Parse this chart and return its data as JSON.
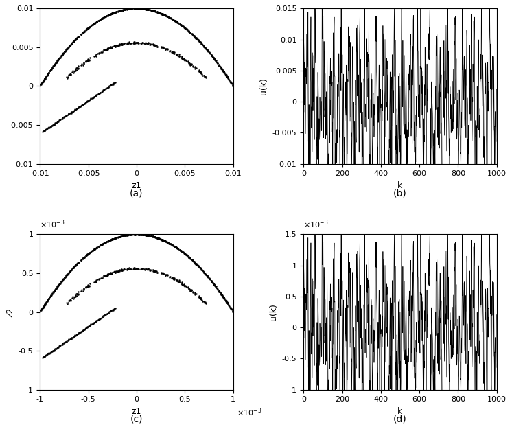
{
  "subplot_labels": [
    "(a)",
    "(b)",
    "(c)",
    "(d)"
  ],
  "ax_a": {
    "xlim": [
      -0.01,
      0.01
    ],
    "ylim": [
      -0.01,
      0.01
    ],
    "xlabel": "z1",
    "xticks": [
      -0.01,
      -0.005,
      0,
      0.005,
      0.01
    ],
    "yticks": [
      -0.01,
      -0.005,
      0,
      0.005,
      0.01
    ]
  },
  "ax_b": {
    "xlim": [
      0,
      1000
    ],
    "ylim": [
      -0.01,
      0.015
    ],
    "xlabel": "k",
    "ylabel": "u(k)",
    "xticks": [
      0,
      200,
      400,
      600,
      800,
      1000
    ],
    "yticks": [
      -0.01,
      -0.005,
      0,
      0.005,
      0.01,
      0.015
    ]
  },
  "ax_c": {
    "xlim": [
      -0.001,
      0.001
    ],
    "ylim": [
      -0.001,
      0.001
    ],
    "xlabel": "z1",
    "ylabel": "z2",
    "xticks": [
      -0.001,
      -0.0005,
      0,
      0.0005,
      0.001
    ],
    "yticks": [
      -0.001,
      -0.0005,
      0,
      0.0005,
      0.001
    ]
  },
  "ax_d": {
    "xlim": [
      0,
      1000
    ],
    "ylim": [
      -0.001,
      0.0015
    ],
    "xlabel": "k",
    "ylabel": "u(k)",
    "xticks": [
      0,
      200,
      400,
      600,
      800,
      1000
    ],
    "yticks": [
      -0.001,
      -0.0005,
      0,
      0.0005,
      0.001,
      0.0015
    ]
  },
  "markersize": 1.5,
  "linewidth": 0.5,
  "figsize": [
    7.46,
    6.25
  ],
  "dpi": 100
}
